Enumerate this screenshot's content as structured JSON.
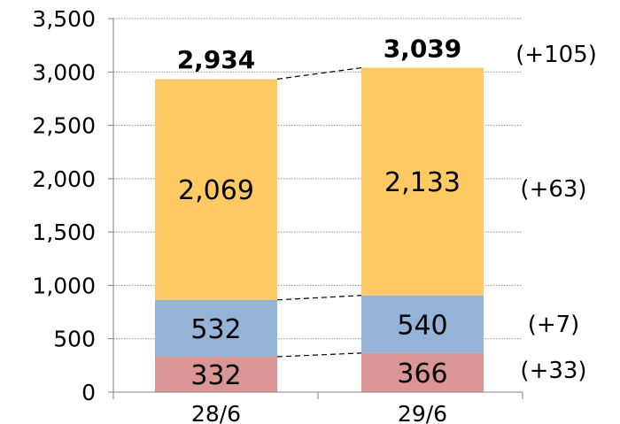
{
  "chart_data": {
    "type": "bar",
    "stacked": true,
    "categories": [
      "28/6",
      "29/6"
    ],
    "series": [
      {
        "values": [
          332,
          366
        ],
        "color": "#d99694"
      },
      {
        "values": [
          532,
          540
        ],
        "color": "#95b3d7"
      },
      {
        "values": [
          2069,
          2133
        ],
        "color": "#ffc963"
      }
    ],
    "totals": [
      2934,
      3039
    ],
    "segment_labels": [
      [
        "332",
        "366"
      ],
      [
        "532",
        "540"
      ],
      [
        "2,069",
        "2,133"
      ]
    ],
    "total_labels": [
      "2,934",
      "3,039"
    ],
    "change_labels": [
      "(+33)",
      "(+7)",
      "(+63)"
    ],
    "total_change_label": "(+105)",
    "ylim": [
      0,
      3500
    ],
    "yticks": [
      0,
      500,
      1000,
      1500,
      2000,
      2500,
      3000,
      3500
    ],
    "ytick_labels": [
      "0",
      "500",
      "1,000",
      "1,500",
      "2,000",
      "2,500",
      "3,000",
      "3,500"
    ],
    "grid": true,
    "grid_style": "dotted",
    "connector_lines": "dashed",
    "title": "",
    "xlabel": "",
    "ylabel": ""
  }
}
